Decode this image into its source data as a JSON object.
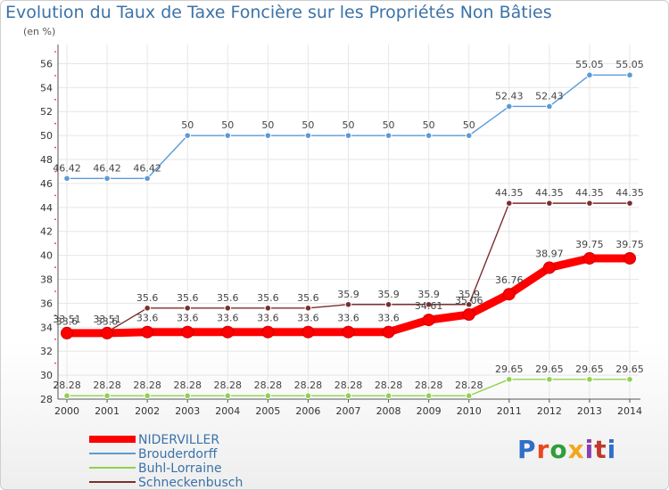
{
  "title": "Evolution du Taux de Taxe Foncière sur les Propriétés Non Bâties",
  "subtitle": "(en %)",
  "logo": {
    "text": "Proxiti",
    "colors": [
      "#2f6fc9",
      "#e8491d",
      "#2f9e3a",
      "#f2a81d",
      "#8c3fb0",
      "#c0392b",
      "#2f6fc9"
    ]
  },
  "chart_data": {
    "type": "line",
    "title": "Evolution du Taux de Taxe Foncière sur les Propriétés Non Bâties",
    "ylabel": "(en %)",
    "xlabel": "",
    "categories": [
      "2000",
      "2001",
      "2002",
      "2003",
      "2004",
      "2005",
      "2006",
      "2007",
      "2008",
      "2009",
      "2010",
      "2011",
      "2012",
      "2013",
      "2014"
    ],
    "ylim": [
      28,
      57
    ],
    "yticks": [
      28,
      30,
      32,
      34,
      36,
      38,
      40,
      42,
      44,
      46,
      48,
      50,
      52,
      54,
      56
    ],
    "grid": true,
    "legend_position": "bottom-left",
    "series": [
      {
        "name": "Brouderdorff",
        "color": "#5b9bd5",
        "values": [
          46.42,
          46.42,
          46.42,
          50,
          50,
          50,
          50,
          50,
          50,
          50,
          50,
          52.43,
          52.43,
          55.05,
          55.05
        ],
        "labels": [
          "46.42",
          "46.42",
          "46.42",
          "50",
          "50",
          "50",
          "50",
          "50",
          "50",
          "50",
          "50",
          "52.43",
          "52.43",
          "55.05",
          "55.05"
        ]
      },
      {
        "name": "Schneckenbusch",
        "color": "#7b2e2e",
        "values": [
          33.6,
          33.6,
          35.6,
          35.6,
          35.6,
          35.6,
          35.6,
          35.9,
          35.9,
          35.9,
          35.9,
          44.35,
          44.35,
          44.35,
          44.35
        ],
        "labels": [
          "33.6",
          "33.6",
          "35.6",
          "35.6",
          "35.6",
          "35.6",
          "35.6",
          "35.9",
          "35.9",
          "35.9",
          "35.9",
          "44.35",
          "44.35",
          "44.35",
          "44.35"
        ]
      },
      {
        "name": "Buhl-Lorraine",
        "color": "#8fd14f",
        "values": [
          28.28,
          28.28,
          28.28,
          28.28,
          28.28,
          28.28,
          28.28,
          28.28,
          28.28,
          28.28,
          28.28,
          29.65,
          29.65,
          29.65,
          29.65
        ],
        "labels": [
          "28.28",
          "28.28",
          "28.28",
          "28.28",
          "28.28",
          "28.28",
          "28.28",
          "28.28",
          "28.28",
          "28.28",
          "28.28",
          "29.65",
          "29.65",
          "29.65",
          "29.65"
        ]
      },
      {
        "name": "NIDERVILLER",
        "color": "#ff0000",
        "values": [
          33.51,
          33.51,
          33.6,
          33.6,
          33.6,
          33.6,
          33.6,
          33.6,
          33.6,
          34.61,
          35.06,
          36.76,
          38.97,
          39.75,
          39.75
        ],
        "labels": [
          "33.51",
          "33.51",
          "33.6",
          "33.6",
          "33.6",
          "33.6",
          "33.6",
          "33.6",
          "33.6",
          "34.61",
          "35.06",
          "36.76",
          "38.97",
          "39.75",
          "39.75"
        ]
      }
    ],
    "legend_order": [
      "NIDERVILLER",
      "Brouderdorff",
      "Buhl-Lorraine",
      "Schneckenbusch"
    ]
  }
}
